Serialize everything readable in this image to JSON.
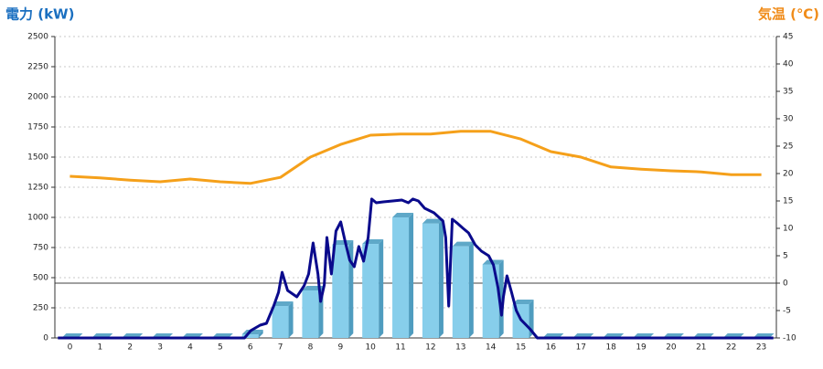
{
  "chart_data": {
    "type": "combo",
    "y_title": "電力 (kW)",
    "y2_title": "気温 (℃)",
    "categories": [
      "0",
      "1",
      "2",
      "3",
      "4",
      "5",
      "6",
      "7",
      "8",
      "9",
      "10",
      "11",
      "12",
      "13",
      "14",
      "15",
      "16",
      "17",
      "18",
      "19",
      "20",
      "21",
      "22",
      "23"
    ],
    "xlim": [
      -0.5,
      23.5
    ],
    "ylim": [
      0,
      2500
    ],
    "yticks": [
      0,
      250,
      500,
      750,
      1000,
      1250,
      1500,
      1750,
      2000,
      2250,
      2500
    ],
    "y2lim": [
      -10,
      45
    ],
    "y2ticks": [
      -10,
      -5,
      0,
      5,
      10,
      15,
      20,
      25,
      30,
      35,
      40,
      45
    ],
    "grid": true,
    "series": [
      {
        "type": "bar",
        "color": "#87ceeb",
        "values": [
          0,
          0,
          0,
          0,
          0,
          0,
          30,
          265,
          394,
          773,
          780,
          1000,
          950,
          760,
          610,
          280,
          0,
          0,
          0,
          0,
          0,
          0,
          0,
          0
        ]
      },
      {
        "type": "line",
        "axis": "y2",
        "color": "#f5a01a",
        "values": [
          19.5,
          19.2,
          18.8,
          18.5,
          19,
          18.5,
          18.2,
          19.3,
          23,
          25.3,
          27,
          27.2,
          27.2,
          27.7,
          27.7,
          26.3,
          24,
          23,
          21.2,
          20.8,
          20.5,
          20.3,
          19.8,
          19.8
        ]
      },
      {
        "type": "line",
        "color": "#0a0a8c",
        "x": [
          -0.4,
          5.81,
          6.02,
          6.33,
          6.54,
          6.78,
          6.94,
          7.06,
          7.24,
          7.55,
          7.79,
          7.94,
          8.09,
          8.25,
          8.34,
          8.46,
          8.55,
          8.7,
          8.85,
          9.01,
          9.16,
          9.31,
          9.46,
          9.61,
          9.77,
          9.92,
          10.04,
          10.19,
          10.43,
          10.74,
          11.04,
          11.26,
          11.41,
          11.59,
          11.8,
          12.11,
          12.41,
          12.5,
          12.6,
          12.72,
          12.87,
          13.08,
          13.26,
          13.48,
          13.69,
          13.93,
          14.09,
          14.24,
          14.36,
          14.42,
          14.54,
          14.69,
          14.85,
          15,
          15.3,
          15.55,
          23.4
        ],
        "values": [
          0,
          0,
          61,
          106,
          121,
          265,
          379,
          545,
          394,
          341,
          432,
          530,
          788,
          530,
          303,
          439,
          833,
          530,
          886,
          962,
          795,
          644,
          591,
          758,
          636,
          833,
          1152,
          1121,
          1129,
          1136,
          1144,
          1121,
          1152,
          1136,
          1076,
          1038,
          970,
          833,
          265,
          985,
          955,
          909,
          871,
          773,
          720,
          682,
          606,
          417,
          189,
          341,
          515,
          379,
          227,
          152,
          76,
          0,
          0
        ]
      }
    ]
  }
}
